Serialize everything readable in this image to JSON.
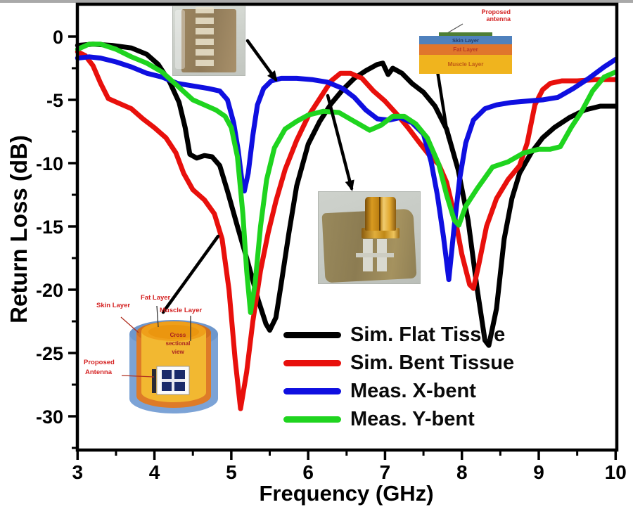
{
  "colors": {
    "black": "#000000",
    "red": "#e8100c",
    "blue": "#0f0fe0",
    "green": "#1fd41f",
    "label_red": "#d42222",
    "stack_skin_text": "#223a66",
    "stack_fat_text": "#b93a22",
    "stack_muscle_text": "#c05a14",
    "layer_blue": "#4f81bd",
    "layer_orange": "#e0762c",
    "layer_yellow": "#f0b41e",
    "layer_green_strip": "#4e7e35",
    "cyl_blue": "#7ca3d6",
    "cyl_orange": "#de7b28",
    "cyl_yellow": "#f2b831",
    "cyl_face": "#ef9f1a"
  },
  "axes": {
    "x": {
      "label": "Frequency (GHz)",
      "min": 3,
      "max": 10,
      "major_ticks": [
        3,
        4,
        5,
        6,
        7,
        8,
        9,
        10
      ],
      "minor_ticks": [
        3.5,
        4.5,
        5.5,
        6.5,
        7.5,
        8.5,
        9.5
      ]
    },
    "y": {
      "label": "Return Loss (dB)",
      "min": -32.5,
      "max": 2.5,
      "major_ticks": [
        0,
        -5,
        -10,
        -15,
        -20,
        -25,
        -30
      ],
      "minor_ticks": [
        -2.5,
        -7.5,
        -12.5,
        -17.5,
        -22.5,
        -27.5,
        -32.5
      ]
    }
  },
  "legend": {
    "items": [
      {
        "label": "Sim. Flat Tissue",
        "color": "#000000"
      },
      {
        "label": "Sim. Bent Tissue",
        "color": "#e8100c"
      },
      {
        "label": "Meas. X-bent",
        "color": "#0f0fe0"
      },
      {
        "label": "Meas. Y-bent",
        "color": "#1fd41f"
      }
    ],
    "position": "lower right of plot"
  },
  "chart_data": {
    "type": "line",
    "title": "",
    "xlabel": "Frequency (GHz)",
    "ylabel": "Return Loss (dB)",
    "xlim": [
      3,
      10
    ],
    "ylim": [
      -32.5,
      2.5
    ],
    "grid": false,
    "series": [
      {
        "id": "sim-flat-tissue",
        "name": "Sim. Flat Tissue",
        "color": "#000000",
        "points": [
          [
            3,
            -0.7
          ],
          [
            3.2,
            -0.6
          ],
          [
            3.45,
            -0.7
          ],
          [
            3.7,
            -0.9
          ],
          [
            3.9,
            -1.4
          ],
          [
            4.05,
            -2.2
          ],
          [
            4.2,
            -3.6
          ],
          [
            4.32,
            -5.2
          ],
          [
            4.4,
            -7.2
          ],
          [
            4.46,
            -9.3
          ],
          [
            4.55,
            -9.6
          ],
          [
            4.65,
            -9.4
          ],
          [
            4.75,
            -9.5
          ],
          [
            4.85,
            -10.2
          ],
          [
            4.95,
            -12.2
          ],
          [
            5.08,
            -15
          ],
          [
            5.2,
            -17.5
          ],
          [
            5.35,
            -20.8
          ],
          [
            5.45,
            -22.7
          ],
          [
            5.5,
            -23.2
          ],
          [
            5.58,
            -22.2
          ],
          [
            5.65,
            -19.5
          ],
          [
            5.75,
            -15.5
          ],
          [
            5.85,
            -11.8
          ],
          [
            6,
            -8.5
          ],
          [
            6.15,
            -6.7
          ],
          [
            6.3,
            -5.3
          ],
          [
            6.45,
            -4.2
          ],
          [
            6.6,
            -3.3
          ],
          [
            6.75,
            -2.7
          ],
          [
            6.9,
            -2.2
          ],
          [
            6.97,
            -2.1
          ],
          [
            7.04,
            -3
          ],
          [
            7.1,
            -2.5
          ],
          [
            7.22,
            -2.9
          ],
          [
            7.35,
            -3.7
          ],
          [
            7.5,
            -4.4
          ],
          [
            7.65,
            -5.5
          ],
          [
            7.8,
            -7.3
          ],
          [
            7.95,
            -10.5
          ],
          [
            8.08,
            -14.5
          ],
          [
            8.2,
            -20
          ],
          [
            8.3,
            -24
          ],
          [
            8.35,
            -24.4
          ],
          [
            8.45,
            -21.5
          ],
          [
            8.55,
            -16
          ],
          [
            8.65,
            -12.8
          ],
          [
            8.75,
            -10.8
          ],
          [
            8.9,
            -9.2
          ],
          [
            9.05,
            -8
          ],
          [
            9.2,
            -7.2
          ],
          [
            9.4,
            -6.4
          ],
          [
            9.6,
            -5.8
          ],
          [
            9.8,
            -5.5
          ],
          [
            10,
            -5.5
          ]
        ]
      },
      {
        "id": "sim-bent-tissue",
        "name": "Sim. Bent Tissue",
        "color": "#e8100c",
        "points": [
          [
            3,
            -1.2
          ],
          [
            3.1,
            -1.5
          ],
          [
            3.2,
            -2.3
          ],
          [
            3.3,
            -3.7
          ],
          [
            3.4,
            -4.9
          ],
          [
            3.55,
            -5.3
          ],
          [
            3.7,
            -5.7
          ],
          [
            3.85,
            -6.5
          ],
          [
            4,
            -7.2
          ],
          [
            4.15,
            -8
          ],
          [
            4.28,
            -9.2
          ],
          [
            4.38,
            -10.8
          ],
          [
            4.5,
            -12.1
          ],
          [
            4.65,
            -12.9
          ],
          [
            4.78,
            -14
          ],
          [
            4.88,
            -16
          ],
          [
            4.97,
            -20
          ],
          [
            5.05,
            -25.5
          ],
          [
            5.12,
            -29.4
          ],
          [
            5.2,
            -26.5
          ],
          [
            5.28,
            -22.5
          ],
          [
            5.38,
            -18.5
          ],
          [
            5.48,
            -15.5
          ],
          [
            5.58,
            -13
          ],
          [
            5.7,
            -10.5
          ],
          [
            5.85,
            -8.2
          ],
          [
            6,
            -6.3
          ],
          [
            6.15,
            -4.9
          ],
          [
            6.3,
            -3.5
          ],
          [
            6.42,
            -2.9
          ],
          [
            6.55,
            -2.9
          ],
          [
            6.7,
            -3.3
          ],
          [
            6.85,
            -4.3
          ],
          [
            7,
            -5.1
          ],
          [
            7.15,
            -6.1
          ],
          [
            7.3,
            -7.2
          ],
          [
            7.45,
            -8.4
          ],
          [
            7.58,
            -9.4
          ],
          [
            7.7,
            -10.1
          ],
          [
            7.8,
            -11.5
          ],
          [
            7.9,
            -14
          ],
          [
            8,
            -17.2
          ],
          [
            8.1,
            -19.6
          ],
          [
            8.15,
            -19.9
          ],
          [
            8.22,
            -18
          ],
          [
            8.32,
            -15
          ],
          [
            8.45,
            -12.8
          ],
          [
            8.6,
            -11.3
          ],
          [
            8.75,
            -10.2
          ],
          [
            8.85,
            -8.4
          ],
          [
            8.95,
            -5.4
          ],
          [
            9.05,
            -4.2
          ],
          [
            9.15,
            -3.7
          ],
          [
            9.3,
            -3.5
          ],
          [
            9.5,
            -3.5
          ],
          [
            9.75,
            -3.4
          ],
          [
            10,
            -3.4
          ]
        ]
      },
      {
        "id": "meas-x-bent",
        "name": "Meas. X-bent",
        "color": "#0f0fe0",
        "points": [
          [
            3,
            -1.7
          ],
          [
            3.15,
            -1.6
          ],
          [
            3.3,
            -1.7
          ],
          [
            3.5,
            -2
          ],
          [
            3.7,
            -2.4
          ],
          [
            3.9,
            -2.9
          ],
          [
            4.1,
            -3.2
          ],
          [
            4.3,
            -3.7
          ],
          [
            4.5,
            -3.9
          ],
          [
            4.7,
            -4.1
          ],
          [
            4.85,
            -4.3
          ],
          [
            4.95,
            -5
          ],
          [
            5.03,
            -6.8
          ],
          [
            5.09,
            -9
          ],
          [
            5.14,
            -11.5
          ],
          [
            5.17,
            -12.2
          ],
          [
            5.22,
            -10.8
          ],
          [
            5.28,
            -7.8
          ],
          [
            5.34,
            -5.4
          ],
          [
            5.42,
            -4.1
          ],
          [
            5.52,
            -3.5
          ],
          [
            5.65,
            -3.3
          ],
          [
            5.85,
            -3.3
          ],
          [
            6.05,
            -3.4
          ],
          [
            6.25,
            -3.6
          ],
          [
            6.45,
            -4.1
          ],
          [
            6.6,
            -4.8
          ],
          [
            6.75,
            -5.8
          ],
          [
            6.9,
            -6.5
          ],
          [
            7.05,
            -6.6
          ],
          [
            7.2,
            -6.4
          ],
          [
            7.35,
            -6.8
          ],
          [
            7.5,
            -7.7
          ],
          [
            7.6,
            -9.9
          ],
          [
            7.68,
            -12.5
          ],
          [
            7.76,
            -15.8
          ],
          [
            7.83,
            -19.2
          ],
          [
            7.9,
            -15
          ],
          [
            7.97,
            -11.3
          ],
          [
            8.05,
            -8.4
          ],
          [
            8.15,
            -6.6
          ],
          [
            8.3,
            -5.7
          ],
          [
            8.45,
            -5.4
          ],
          [
            8.65,
            -5.2
          ],
          [
            8.85,
            -5.1
          ],
          [
            9.05,
            -5
          ],
          [
            9.25,
            -4.8
          ],
          [
            9.45,
            -4.1
          ],
          [
            9.65,
            -3.3
          ],
          [
            9.85,
            -2.4
          ],
          [
            10,
            -1.8
          ]
        ]
      },
      {
        "id": "meas-y-bent",
        "name": "Meas. Y-bent",
        "color": "#1fd41f",
        "points": [
          [
            3,
            -1
          ],
          [
            3.15,
            -0.6
          ],
          [
            3.3,
            -0.6
          ],
          [
            3.5,
            -1
          ],
          [
            3.7,
            -1.6
          ],
          [
            3.9,
            -2.1
          ],
          [
            4.1,
            -2.8
          ],
          [
            4.3,
            -3.9
          ],
          [
            4.5,
            -5
          ],
          [
            4.65,
            -5.4
          ],
          [
            4.8,
            -5.8
          ],
          [
            4.92,
            -6.3
          ],
          [
            5,
            -7.2
          ],
          [
            5.08,
            -9.5
          ],
          [
            5.15,
            -14
          ],
          [
            5.2,
            -18.5
          ],
          [
            5.25,
            -21.8
          ],
          [
            5.31,
            -19.5
          ],
          [
            5.38,
            -15
          ],
          [
            5.46,
            -11.3
          ],
          [
            5.56,
            -8.8
          ],
          [
            5.7,
            -7.3
          ],
          [
            5.85,
            -6.7
          ],
          [
            6,
            -6.2
          ],
          [
            6.2,
            -5.9
          ],
          [
            6.4,
            -6
          ],
          [
            6.6,
            -6.7
          ],
          [
            6.8,
            -7.4
          ],
          [
            6.95,
            -7
          ],
          [
            7.1,
            -6.3
          ],
          [
            7.25,
            -6.3
          ],
          [
            7.4,
            -6.9
          ],
          [
            7.55,
            -8
          ],
          [
            7.7,
            -10.1
          ],
          [
            7.8,
            -12.5
          ],
          [
            7.9,
            -14.5
          ],
          [
            7.96,
            -14.9
          ],
          [
            8.05,
            -13.4
          ],
          [
            8.2,
            -12
          ],
          [
            8.4,
            -10.3
          ],
          [
            8.6,
            -9.9
          ],
          [
            8.8,
            -9.2
          ],
          [
            9,
            -8.9
          ],
          [
            9.15,
            -8.9
          ],
          [
            9.28,
            -8.7
          ],
          [
            9.42,
            -7.2
          ],
          [
            9.55,
            -6
          ],
          [
            9.7,
            -4.3
          ],
          [
            9.85,
            -3.2
          ],
          [
            10,
            -2.8
          ]
        ]
      }
    ],
    "resonance_minima": [
      {
        "series": "Sim. Bent Tissue",
        "x": 5.12,
        "y": -29.4
      },
      {
        "series": "Meas. Y-bent",
        "x": 5.25,
        "y": -21.8
      },
      {
        "series": "Sim. Flat Tissue",
        "x": 5.5,
        "y": -23.2
      },
      {
        "series": "Meas. X-bent",
        "x": 5.17,
        "y": -12.2
      },
      {
        "series": "Meas. X-bent",
        "x": 7.83,
        "y": -19.2
      },
      {
        "series": "Meas. Y-bent",
        "x": 7.96,
        "y": -14.9
      },
      {
        "series": "Sim. Bent Tissue",
        "x": 8.15,
        "y": -19.9
      },
      {
        "series": "Sim. Flat Tissue",
        "x": 8.35,
        "y": -24.4
      }
    ]
  },
  "insets": {
    "layer_stack": {
      "labels": {
        "proposed_line1": "Proposed",
        "proposed_line2": "antenna",
        "skin": "Skin Layer",
        "fat": "Fat Layer",
        "muscle": "Muscle Layer"
      }
    },
    "cylinder_phantom": {
      "labels": {
        "skin": "Skin Layer",
        "fat": "Fat Layer",
        "muscle": "Muscle Layer",
        "proposed_line1": "Proposed",
        "proposed_line2": "Antenna",
        "center_line1": "Cross",
        "center_line2": "sectional",
        "center_line3": "view"
      }
    }
  },
  "annotations": {
    "leader_lines": [
      {
        "from": [
          352,
          58
        ],
        "to": [
          392,
          113
        ],
        "arrow": true
      },
      {
        "from": [
          466,
          136
        ],
        "to": [
          500,
          268
        ],
        "arrow": true
      },
      {
        "from": [
          621,
          95
        ],
        "to": [
          637,
          196
        ],
        "arrow": false
      },
      {
        "from": [
          232,
          444
        ],
        "to": [
          310,
          336
        ],
        "arrow": false
      }
    ]
  }
}
